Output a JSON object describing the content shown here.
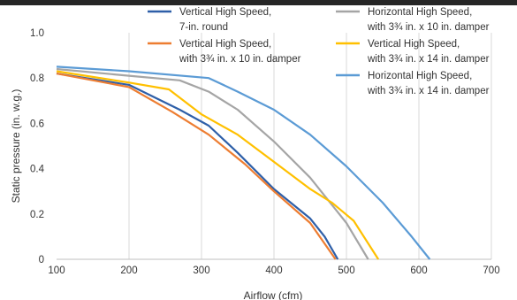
{
  "chart_data": {
    "type": "line",
    "xlabel": "Airflow (cfm)",
    "ylabel": "Static pressure (in. w.g.)",
    "xlim": [
      100,
      700
    ],
    "ylim": [
      0,
      1.0
    ],
    "xticks": [
      "100",
      "200",
      "300",
      "400",
      "500",
      "600",
      "700"
    ],
    "yticks": [
      "0",
      "0.2",
      "0.4",
      "0.6",
      "0.8",
      "1.0"
    ],
    "grid": "vertical",
    "legend_position": "top",
    "series": [
      {
        "name_lines": [
          "Vertical High Speed,",
          "7-in. round"
        ],
        "color": "#2e5fa8",
        "points": [
          [
            100,
            0.82
          ],
          [
            200,
            0.77
          ],
          [
            270,
            0.66
          ],
          [
            310,
            0.59
          ],
          [
            350,
            0.47
          ],
          [
            400,
            0.31
          ],
          [
            450,
            0.18
          ],
          [
            470,
            0.1
          ],
          [
            488,
            0.0
          ]
        ]
      },
      {
        "name_lines": [
          "Vertical High Speed,",
          "with 3¾ in. x 10 in. damper"
        ],
        "color": "#ed7d31",
        "points": [
          [
            100,
            0.82
          ],
          [
            200,
            0.76
          ],
          [
            260,
            0.65
          ],
          [
            310,
            0.55
          ],
          [
            360,
            0.42
          ],
          [
            400,
            0.3
          ],
          [
            450,
            0.16
          ],
          [
            485,
            0.0
          ]
        ]
      },
      {
        "name_lines": [
          "Horizontal High Speed,",
          "with 3¾ in. x 10 in. damper"
        ],
        "color": "#a5a5a5",
        "points": [
          [
            100,
            0.84
          ],
          [
            200,
            0.81
          ],
          [
            270,
            0.79
          ],
          [
            310,
            0.74
          ],
          [
            350,
            0.66
          ],
          [
            400,
            0.52
          ],
          [
            450,
            0.36
          ],
          [
            500,
            0.16
          ],
          [
            530,
            0.0
          ]
        ]
      },
      {
        "name_lines": [
          "Vertical High Speed,",
          "with 3¾ in. x 14 in. damper"
        ],
        "color": "#ffc000",
        "points": [
          [
            100,
            0.83
          ],
          [
            200,
            0.78
          ],
          [
            255,
            0.75
          ],
          [
            300,
            0.64
          ],
          [
            350,
            0.55
          ],
          [
            400,
            0.43
          ],
          [
            450,
            0.31
          ],
          [
            480,
            0.25
          ],
          [
            510,
            0.17
          ],
          [
            544,
            0.0
          ]
        ]
      },
      {
        "name_lines": [
          "Horizontal High Speed,",
          "with 3¾ in. x 14 in. damper"
        ],
        "color": "#5b9bd5",
        "points": [
          [
            100,
            0.85
          ],
          [
            200,
            0.83
          ],
          [
            310,
            0.8
          ],
          [
            350,
            0.74
          ],
          [
            400,
            0.66
          ],
          [
            450,
            0.55
          ],
          [
            500,
            0.41
          ],
          [
            550,
            0.25
          ],
          [
            590,
            0.1
          ],
          [
            615,
            0.0
          ]
        ]
      }
    ]
  }
}
